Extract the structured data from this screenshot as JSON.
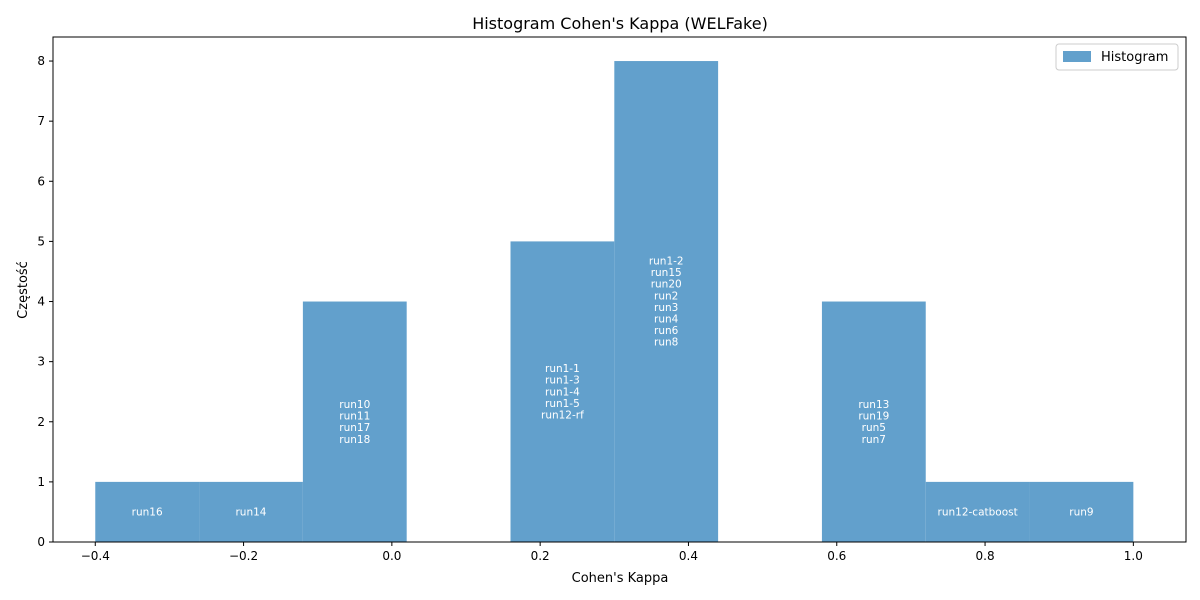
{
  "chart_data": {
    "type": "bar",
    "title": "Histogram Cohen's Kappa (WELFake)",
    "xlabel": "Cohen's Kappa",
    "ylabel": "Częstość",
    "xlim": [
      -0.457,
      1.071
    ],
    "ylim": [
      0,
      8.4
    ],
    "xticks": [
      "−0.4",
      "−0.2",
      "0.0",
      "0.2",
      "0.4",
      "0.6",
      "0.8",
      "1.0"
    ],
    "xtick_values": [
      -0.4,
      -0.2,
      0.0,
      0.2,
      0.4,
      0.6,
      0.8,
      1.0
    ],
    "yticks": [
      "0",
      "1",
      "2",
      "3",
      "4",
      "5",
      "6",
      "7",
      "8"
    ],
    "ytick_values": [
      0,
      1,
      2,
      3,
      4,
      5,
      6,
      7,
      8
    ],
    "bar_color": "#62a0cc",
    "legend": {
      "label": "Histogram",
      "position": "top-right"
    },
    "bins": [
      {
        "x0": -0.4,
        "x1": -0.26,
        "count": 1,
        "runs": [
          "run16"
        ]
      },
      {
        "x0": -0.26,
        "x1": -0.12,
        "count": 1,
        "runs": [
          "run14"
        ]
      },
      {
        "x0": -0.12,
        "x1": 0.02,
        "count": 4,
        "runs": [
          "run10",
          "run11",
          "run17",
          "run18"
        ]
      },
      {
        "x0": 0.02,
        "x1": 0.16,
        "count": 0,
        "runs": []
      },
      {
        "x0": 0.16,
        "x1": 0.3,
        "count": 5,
        "runs": [
          "run1-1",
          "run1-3",
          "run1-4",
          "run1-5",
          "run12-rf"
        ]
      },
      {
        "x0": 0.3,
        "x1": 0.44,
        "count": 8,
        "runs": [
          "run1-2",
          "run15",
          "run20",
          "run2",
          "run3",
          "run4",
          "run6",
          "run8"
        ]
      },
      {
        "x0": 0.44,
        "x1": 0.58,
        "count": 0,
        "runs": []
      },
      {
        "x0": 0.58,
        "x1": 0.72,
        "count": 4,
        "runs": [
          "run13",
          "run19",
          "run5",
          "run7"
        ]
      },
      {
        "x0": 0.72,
        "x1": 0.86,
        "count": 1,
        "runs": [
          "run12-catboost"
        ]
      },
      {
        "x0": 0.86,
        "x1": 1.0,
        "count": 1,
        "runs": [
          "run9"
        ]
      }
    ]
  }
}
